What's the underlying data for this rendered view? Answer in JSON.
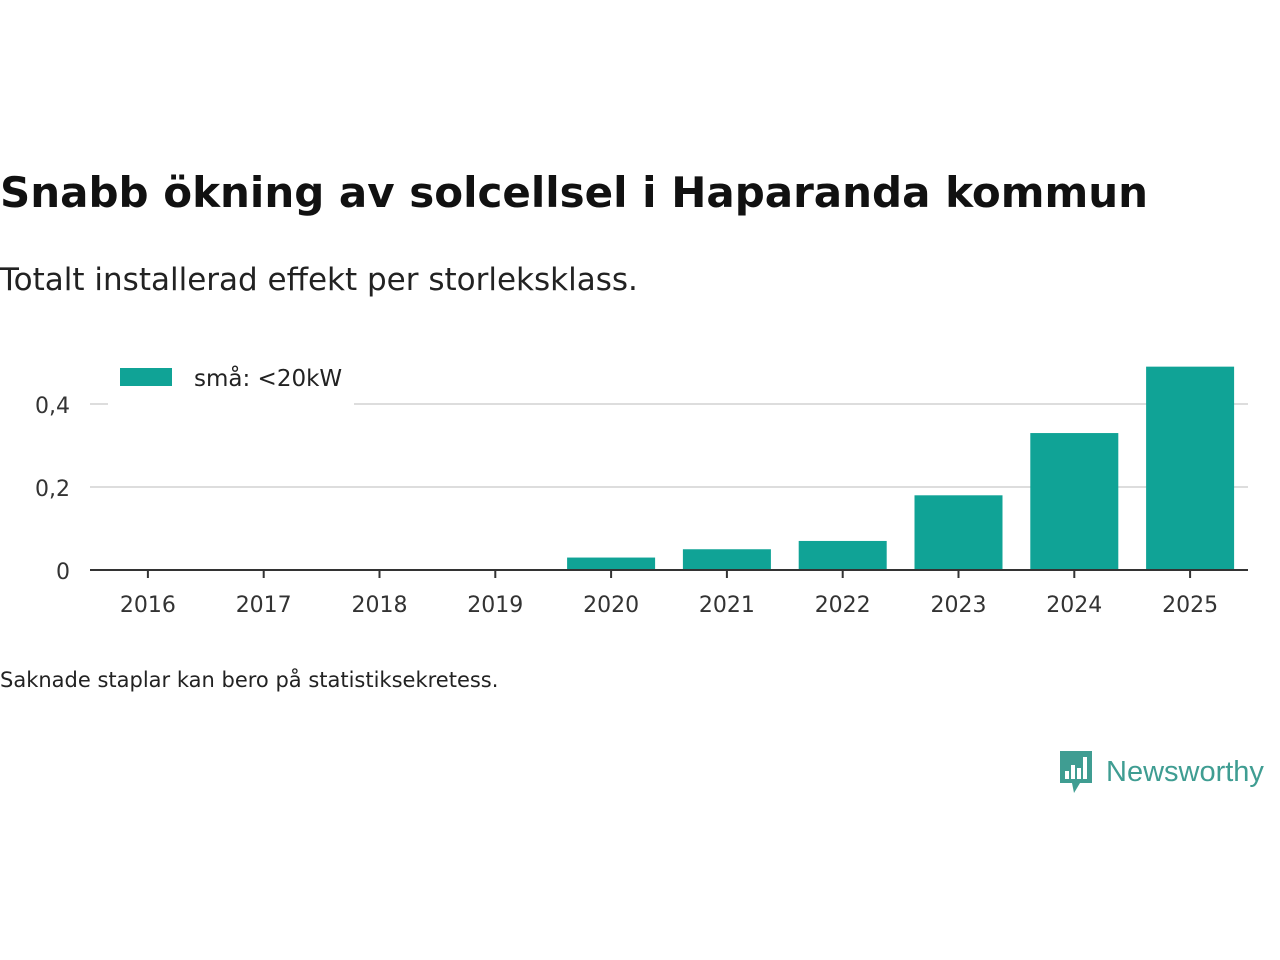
{
  "header": {
    "title": "Snabb ökning av solcellsel i Haparanda kommun",
    "subtitle": "Totalt installerad effekt per storleksklass."
  },
  "footer": {
    "note": "Saknade staplar kan bero på statistiksekretess.",
    "brand": "Newsworthy"
  },
  "colors": {
    "bar": "#10a396",
    "grid": "#dddddd",
    "axis": "#333333",
    "brand": "#3f9d92"
  },
  "chart_data": {
    "type": "bar",
    "title": "Snabb ökning av solcellsel i Haparanda kommun",
    "subtitle": "Totalt installerad effekt per storleksklass.",
    "xlabel": "",
    "ylabel": "",
    "categories": [
      "2016",
      "2017",
      "2018",
      "2019",
      "2020",
      "2021",
      "2022",
      "2023",
      "2024",
      "2025"
    ],
    "series": [
      {
        "name": "små: <20kW",
        "values": [
          0,
          0,
          0,
          0,
          0.03,
          0.05,
          0.07,
          0.18,
          0.33,
          0.49
        ]
      }
    ],
    "ylim": [
      0,
      0.5
    ],
    "yticks": [
      {
        "value": 0,
        "label": "0"
      },
      {
        "value": 0.2,
        "label": "0,2"
      },
      {
        "value": 0.4,
        "label": "0,4"
      }
    ],
    "grid": true,
    "legend_position": "top-left"
  }
}
